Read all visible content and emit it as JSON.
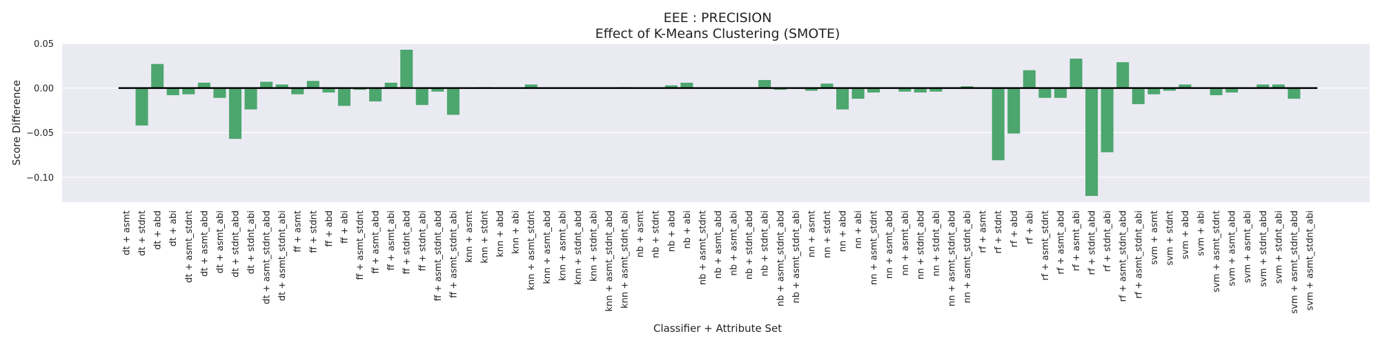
{
  "chart_data": {
    "type": "bar",
    "title": "EEE : PRECISION",
    "subtitle": "Effect of K-Means Clustering (SMOTE)",
    "xlabel": "Classifier + Attribute Set",
    "ylabel": "Score Difference",
    "ylim": [
      -0.128,
      0.05
    ],
    "yticks": [
      0.05,
      0.0,
      -0.05,
      -0.1
    ],
    "ytick_labels": [
      "0.05",
      "0.00",
      "−0.05",
      "−0.10"
    ],
    "grid": true,
    "bar_color": "#4ca66e",
    "background_color": "#eaeaf2",
    "zero_line_color": "#000000",
    "categories": [
      "dt + asmt",
      "dt + stdnt",
      "dt + abd",
      "dt + abi",
      "dt + asmt_stdnt",
      "dt + asmt_abd",
      "dt + asmt_abi",
      "dt + stdnt_abd",
      "dt + stdnt_abi",
      "dt + asmt_stdnt_abd",
      "dt + asmt_stdnt_abi",
      "ff + asmt",
      "ff + stdnt",
      "ff + abd",
      "ff + abi",
      "ff + asmt_stdnt",
      "ff + asmt_abd",
      "ff + asmt_abi",
      "ff + stdnt_abd",
      "ff + stdnt_abi",
      "ff + asmt_stdnt_abd",
      "ff + asmt_stdnt_abi",
      "knn + asmt",
      "knn + stdnt",
      "knn + abd",
      "knn + abi",
      "knn + asmt_stdnt",
      "knn + asmt_abd",
      "knn + asmt_abi",
      "knn + stdnt_abd",
      "knn + stdnt_abi",
      "knn + asmt_stdnt_abd",
      "knn + asmt_stdnt_abi",
      "nb + asmt",
      "nb + stdnt",
      "nb + abd",
      "nb + abi",
      "nb + asmt_stdnt",
      "nb + asmt_abd",
      "nb + asmt_abi",
      "nb + stdnt_abd",
      "nb + stdnt_abi",
      "nb + asmt_stdnt_abd",
      "nb + asmt_stdnt_abi",
      "nn + asmt",
      "nn + stdnt",
      "nn + abd",
      "nn + abi",
      "nn + asmt_stdnt",
      "nn + asmt_abd",
      "nn + asmt_abi",
      "nn + stdnt_abd",
      "nn + stdnt_abi",
      "nn + asmt_stdnt_abd",
      "nn + asmt_stdnt_abi",
      "rf + asmt",
      "rf + stdnt",
      "rf + abd",
      "rf + abi",
      "rf + asmt_stdnt",
      "rf + asmt_abd",
      "rf + asmt_abi",
      "rf + stdnt_abd",
      "rf + stdnt_abi",
      "rf + asmt_stdnt_abd",
      "rf + asmt_stdnt_abi",
      "svm + asmt",
      "svm + stdnt",
      "svm + abd",
      "svm + abi",
      "svm + asmt_stdnt",
      "svm + asmt_abd",
      "svm + asmt_abi",
      "svm + stdnt_abd",
      "svm + stdnt_abi",
      "svm + asmt_stdnt_abd",
      "svm + asmt_stdnt_abi"
    ],
    "values": [
      0.0,
      -0.042,
      0.027,
      -0.008,
      -0.007,
      0.006,
      -0.011,
      -0.057,
      -0.024,
      0.007,
      0.004,
      -0.007,
      0.008,
      -0.005,
      -0.02,
      -0.002,
      -0.015,
      0.006,
      0.043,
      -0.019,
      -0.004,
      -0.03,
      0.0,
      0.001,
      0.0,
      0.0,
      0.004,
      0.0,
      0.0,
      0.0,
      0.0,
      0.0,
      0.001,
      0.0,
      0.0,
      0.003,
      0.006,
      0.0,
      0.0,
      0.0,
      0.0,
      0.009,
      -0.002,
      0.0,
      -0.003,
      0.005,
      -0.024,
      -0.012,
      -0.005,
      0.0,
      -0.004,
      -0.005,
      -0.004,
      0.0,
      0.002,
      0.0,
      -0.081,
      -0.051,
      0.02,
      -0.011,
      -0.011,
      0.033,
      -0.121,
      -0.072,
      0.029,
      -0.018,
      -0.007,
      -0.003,
      0.004,
      0.0,
      -0.008,
      -0.005,
      0.0,
      0.004,
      0.004,
      -0.012,
      0.0
    ]
  }
}
